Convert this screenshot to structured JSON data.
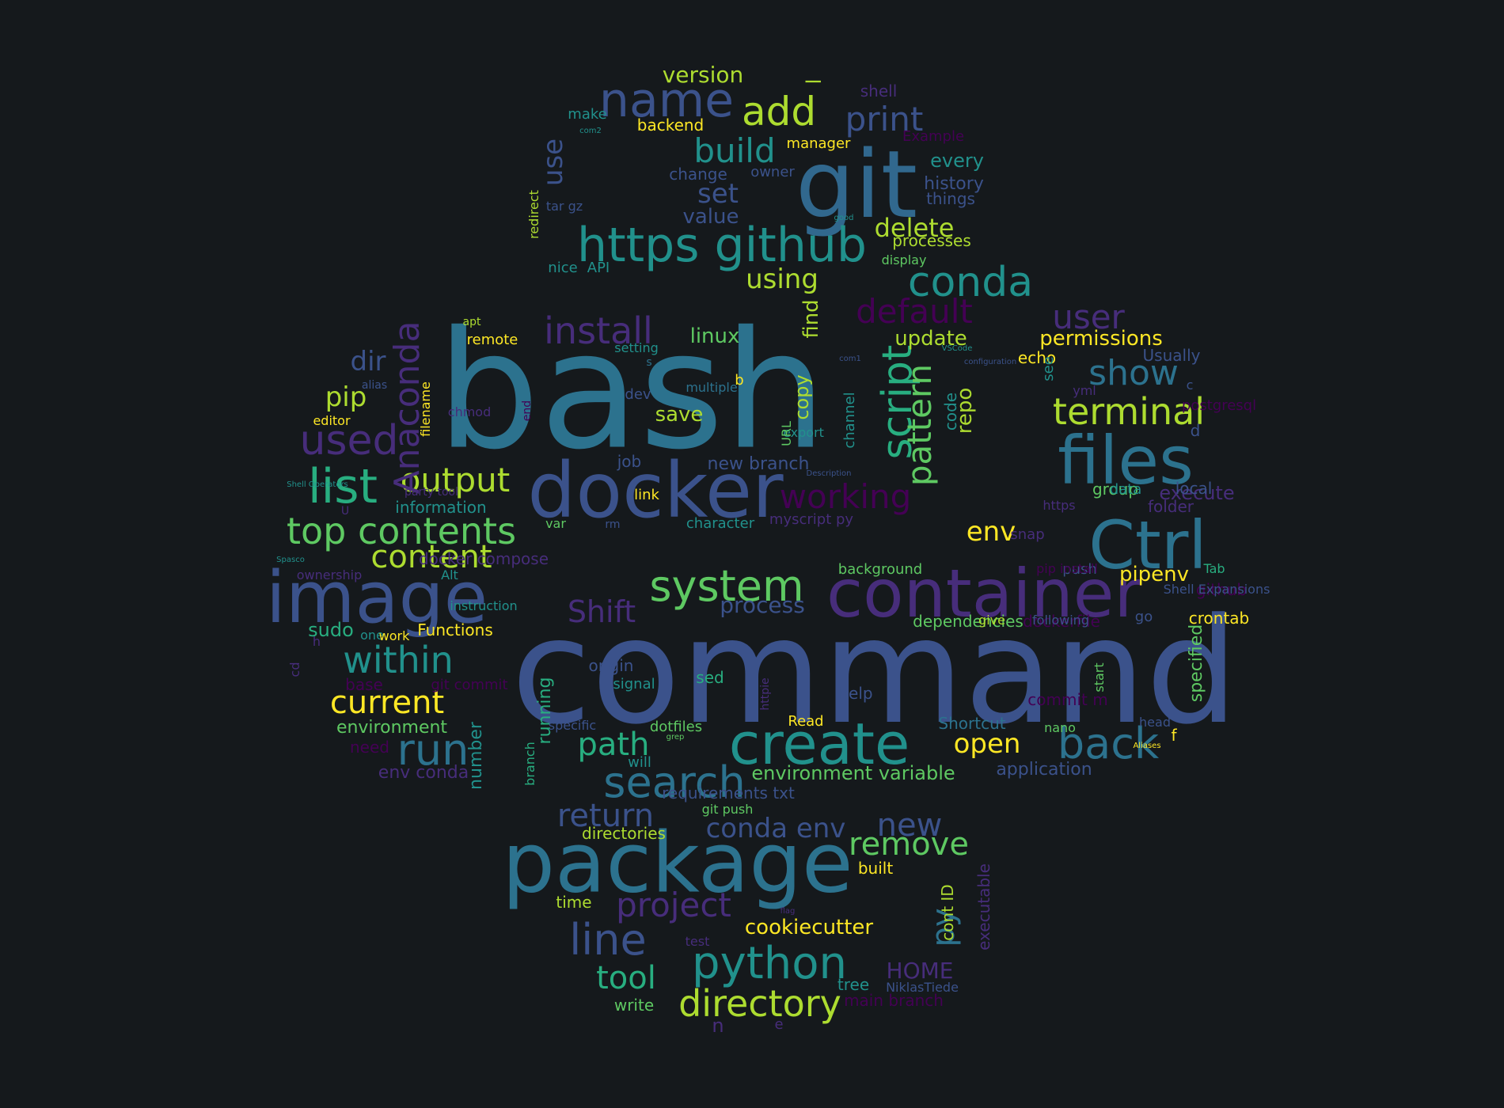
{
  "palette": {
    "background": "#15191c",
    "viridis_darkest": "#440154",
    "viridis_purple": "#472d7b",
    "viridis_indigo": "#3b528b",
    "viridis_blue": "#2c728e",
    "viridis_teal": "#21918c",
    "viridis_green": "#28ae80",
    "viridis_lime": "#5ec962",
    "viridis_yellowgreen": "#addc30",
    "viridis_yellow": "#fde725"
  },
  "words": [
    {
      "text": "bash",
      "color": "#2c728e"
    },
    {
      "text": "command",
      "color": "#3b528b"
    },
    {
      "text": "git",
      "color": "#31688e"
    },
    {
      "text": "package",
      "color": "#2c728e"
    },
    {
      "text": "docker",
      "color": "#3b528b"
    },
    {
      "text": "image",
      "color": "#3b528b"
    },
    {
      "text": "container",
      "color": "#472d7b"
    },
    {
      "text": "files",
      "color": "#2c728e"
    },
    {
      "text": "Ctrl",
      "color": "#2c728e"
    },
    {
      "text": "create",
      "color": "#21918c"
    },
    {
      "text": "https github",
      "color": "#21918c"
    },
    {
      "text": "name",
      "color": "#3b528b"
    },
    {
      "text": "list",
      "color": "#28ae80"
    },
    {
      "text": "python",
      "color": "#21918c"
    },
    {
      "text": "search",
      "color": "#2c728e"
    },
    {
      "text": "system",
      "color": "#5ec962"
    },
    {
      "text": "top contents",
      "color": "#5ec962"
    },
    {
      "text": "conda",
      "color": "#21918c"
    },
    {
      "text": "within",
      "color": "#21918c"
    },
    {
      "text": "back",
      "color": "#2c728e"
    },
    {
      "text": "line",
      "color": "#3b528b"
    },
    {
      "text": "directory",
      "color": "#addc30"
    },
    {
      "text": "run",
      "color": "#2c728e"
    },
    {
      "text": "add",
      "color": "#addc30"
    },
    {
      "text": "script",
      "color": "#28ae80"
    },
    {
      "text": "used",
      "color": "#472d7b"
    },
    {
      "text": "terminal",
      "color": "#addc30"
    },
    {
      "text": "output",
      "color": "#addc30"
    },
    {
      "text": "content",
      "color": "#addc30"
    },
    {
      "text": "install",
      "color": "#472d7b"
    },
    {
      "text": "return",
      "color": "#3b528b"
    },
    {
      "text": "pattern",
      "color": "#5ec962"
    },
    {
      "text": "working",
      "color": "#440154"
    },
    {
      "text": "Anaconda",
      "color": "#472d7b"
    },
    {
      "text": "current",
      "color": "#fde725"
    },
    {
      "text": "project",
      "color": "#472d7b"
    },
    {
      "text": "show",
      "color": "#2c728e"
    },
    {
      "text": "default",
      "color": "#440154"
    },
    {
      "text": "print",
      "color": "#3b528b"
    },
    {
      "text": "build",
      "color": "#21918c"
    },
    {
      "text": "path",
      "color": "#28ae80"
    },
    {
      "text": "user",
      "color": "#472d7b"
    },
    {
      "text": "remove",
      "color": "#5ec962"
    },
    {
      "text": "Shift",
      "color": "#472d7b"
    },
    {
      "text": "tool",
      "color": "#28ae80"
    },
    {
      "text": "new",
      "color": "#3b528b"
    },
    {
      "text": "conda env",
      "color": "#3b528b"
    },
    {
      "text": "py",
      "color": "#2c728e"
    },
    {
      "text": "open",
      "color": "#fde725"
    },
    {
      "text": "env",
      "color": "#fde725"
    },
    {
      "text": "dir",
      "color": "#3b528b"
    },
    {
      "text": "pip",
      "color": "#addc30"
    },
    {
      "text": "using",
      "color": "#addc30"
    },
    {
      "text": "use",
      "color": "#3b528b"
    },
    {
      "text": "set",
      "color": "#3b528b"
    },
    {
      "text": "delete",
      "color": "#addc30"
    },
    {
      "text": "process",
      "color": "#3b528b"
    },
    {
      "text": "cookiecutter",
      "color": "#fde725"
    },
    {
      "text": "update",
      "color": "#addc30"
    },
    {
      "text": "permissions",
      "color": "#fde725"
    },
    {
      "text": "pipenv",
      "color": "#fde725"
    },
    {
      "text": "HOME",
      "color": "#472d7b"
    },
    {
      "text": "version",
      "color": "#addc30"
    },
    {
      "text": "linux",
      "color": "#5ec962"
    },
    {
      "text": "save",
      "color": "#addc30"
    },
    {
      "text": "repo",
      "color": "#addc30"
    },
    {
      "text": "environment variable",
      "color": "#5ec962"
    },
    {
      "text": "every",
      "color": "#21918c"
    },
    {
      "text": "value",
      "color": "#3b528b"
    },
    {
      "text": "sudo",
      "color": "#28ae80"
    },
    {
      "text": "environment",
      "color": "#5ec962"
    },
    {
      "text": "new branch",
      "color": "#3b528b"
    },
    {
      "text": "find",
      "color": "#addc30"
    },
    {
      "text": "copy",
      "color": "#addc30"
    },
    {
      "text": "code",
      "color": "#21918c"
    },
    {
      "text": "specified",
      "color": "#5ec962"
    },
    {
      "text": "running",
      "color": "#28ae80"
    },
    {
      "text": "history",
      "color": "#3b528b"
    },
    {
      "text": "things",
      "color": "#3b528b"
    },
    {
      "text": "processes",
      "color": "#addc30"
    },
    {
      "text": "directories",
      "color": "#addc30"
    },
    {
      "text": "execute",
      "color": "#472d7b"
    },
    {
      "text": "application",
      "color": "#3b528b"
    },
    {
      "text": "Shortcut",
      "color": "#2c728e"
    },
    {
      "text": "information",
      "color": "#21918c"
    },
    {
      "text": "character",
      "color": "#21918c"
    },
    {
      "text": "backend",
      "color": "#fde725"
    },
    {
      "text": "manager",
      "color": "#fde725"
    },
    {
      "text": "change",
      "color": "#3b528b"
    },
    {
      "text": "owner",
      "color": "#3b528b"
    },
    {
      "text": "shell",
      "color": "#472d7b"
    },
    {
      "text": "Example",
      "color": "#440154"
    },
    {
      "text": "make",
      "color": "#21918c"
    },
    {
      "text": "display",
      "color": "#5ec962"
    },
    {
      "text": "nice",
      "color": "#21918c"
    },
    {
      "text": "API",
      "color": "#21918c"
    },
    {
      "text": "tar gz",
      "color": "#3b528b"
    },
    {
      "text": "redirect",
      "color": "#addc30"
    },
    {
      "text": "com2",
      "color": "#21918c"
    },
    {
      "text": "good",
      "color": "#21918c"
    },
    {
      "text": "l",
      "color": "#addc30"
    },
    {
      "text": "remote",
      "color": "#fde725"
    },
    {
      "text": "apt",
      "color": "#addc30"
    },
    {
      "text": "setting",
      "color": "#21918c"
    },
    {
      "text": "s",
      "color": "#2c728e"
    },
    {
      "text": "multiple",
      "color": "#2c728e"
    },
    {
      "text": "b",
      "color": "#fde725"
    },
    {
      "text": "dev",
      "color": "#3b528b"
    },
    {
      "text": "job",
      "color": "#3b528b"
    },
    {
      "text": "link",
      "color": "#fde725"
    },
    {
      "text": "var",
      "color": "#5ec962"
    },
    {
      "text": "rm",
      "color": "#3b528b"
    },
    {
      "text": "myscript py",
      "color": "#472d7b"
    },
    {
      "text": "export",
      "color": "#21918c"
    },
    {
      "text": "URL",
      "color": "#5ec962"
    },
    {
      "text": "channel",
      "color": "#21918c"
    },
    {
      "text": "Description",
      "color": "#3b528b"
    },
    {
      "text": "com1",
      "color": "#3b528b"
    },
    {
      "text": "VSCode",
      "color": "#21918c"
    },
    {
      "text": "configuration",
      "color": "#3b528b"
    },
    {
      "text": "Usually",
      "color": "#3b528b"
    },
    {
      "text": "echo",
      "color": "#fde725"
    },
    {
      "text": "see",
      "color": "#21918c"
    },
    {
      "text": "c",
      "color": "#3b528b"
    },
    {
      "text": "yml",
      "color": "#472d7b"
    },
    {
      "text": "postgresql",
      "color": "#440154"
    },
    {
      "text": "d",
      "color": "#3b528b"
    },
    {
      "text": "local",
      "color": "#3b528b"
    },
    {
      "text": "group",
      "color": "#5ec962"
    },
    {
      "text": "https",
      "color": "#472d7b"
    },
    {
      "text": "folder",
      "color": "#472d7b"
    },
    {
      "text": "snap",
      "color": "#472d7b"
    },
    {
      "text": "data",
      "color": "#21918c"
    },
    {
      "text": "push",
      "color": "#3b528b"
    },
    {
      "text": "pip install",
      "color": "#440154"
    },
    {
      "text": "github",
      "color": "#440154"
    },
    {
      "text": "Tab",
      "color": "#28ae80"
    },
    {
      "text": "go",
      "color": "#3b528b"
    },
    {
      "text": "crontab",
      "color": "#fde725"
    },
    {
      "text": "Shell Expansions",
      "color": "#3b528b"
    },
    {
      "text": "dependencies",
      "color": "#5ec962"
    },
    {
      "text": "dockerfile",
      "color": "#440154"
    },
    {
      "text": "background",
      "color": "#5ec962"
    },
    {
      "text": "following",
      "color": "#3b528b"
    },
    {
      "text": "give",
      "color": "#addc30"
    },
    {
      "text": "start",
      "color": "#5ec962"
    },
    {
      "text": "commit m",
      "color": "#440154"
    },
    {
      "text": "nano",
      "color": "#5ec962"
    },
    {
      "text": "head",
      "color": "#3b528b"
    },
    {
      "text": "f",
      "color": "#fde725"
    },
    {
      "text": "Aliases",
      "color": "#fde725"
    },
    {
      "text": "help",
      "color": "#3b528b"
    },
    {
      "text": "Read",
      "color": "#fde725"
    },
    {
      "text": "httpie",
      "color": "#472d7b"
    },
    {
      "text": "sed",
      "color": "#28ae80"
    },
    {
      "text": "signal",
      "color": "#21918c"
    },
    {
      "text": "origin",
      "color": "#3b528b"
    },
    {
      "text": "specific",
      "color": "#3b528b"
    },
    {
      "text": "dotfiles",
      "color": "#5ec962"
    },
    {
      "text": "grep",
      "color": "#5ec962"
    },
    {
      "text": "will",
      "color": "#21918c"
    },
    {
      "text": "requirements txt",
      "color": "#3b528b"
    },
    {
      "text": "git push",
      "color": "#5ec962"
    },
    {
      "text": "branch",
      "color": "#28ae80"
    },
    {
      "text": "number",
      "color": "#21918c"
    },
    {
      "text": "env conda",
      "color": "#472d7b"
    },
    {
      "text": "need",
      "color": "#440154"
    },
    {
      "text": "base",
      "color": "#440154"
    },
    {
      "text": "git commit",
      "color": "#440154"
    },
    {
      "text": "cd",
      "color": "#472d7b"
    },
    {
      "text": "h",
      "color": "#472d7b"
    },
    {
      "text": "one",
      "color": "#21918c"
    },
    {
      "text": "work",
      "color": "#fde725"
    },
    {
      "text": "Functions",
      "color": "#fde725"
    },
    {
      "text": "instruction",
      "color": "#21918c"
    },
    {
      "text": "ownership",
      "color": "#472d7b"
    },
    {
      "text": "Alt",
      "color": "#21918c"
    },
    {
      "text": "Spasco",
      "color": "#21918c"
    },
    {
      "text": "docker compose",
      "color": "#472d7b"
    },
    {
      "text": "U",
      "color": "#472d7b"
    },
    {
      "text": "Shell Operators",
      "color": "#21918c"
    },
    {
      "text": "party tool",
      "color": "#472d7b"
    },
    {
      "text": "end",
      "color": "#440154"
    },
    {
      "text": "filename",
      "color": "#fde725"
    },
    {
      "text": "chmod",
      "color": "#472d7b"
    },
    {
      "text": "editor",
      "color": "#fde725"
    },
    {
      "text": "alias",
      "color": "#3b528b"
    },
    {
      "text": "built",
      "color": "#fde725"
    },
    {
      "text": "cont ID",
      "color": "#addc30"
    },
    {
      "text": "executable",
      "color": "#472d7b"
    },
    {
      "text": "tree",
      "color": "#21918c"
    },
    {
      "text": "NiklasTiede",
      "color": "#3b528b"
    },
    {
      "text": "main branch",
      "color": "#440154"
    },
    {
      "text": "flag",
      "color": "#472d7b"
    },
    {
      "text": "test",
      "color": "#472d7b"
    },
    {
      "text": "time",
      "color": "#addc30"
    },
    {
      "text": "write",
      "color": "#5ec962"
    },
    {
      "text": "n",
      "color": "#472d7b"
    },
    {
      "text": "e",
      "color": "#472d7b"
    }
  ]
}
